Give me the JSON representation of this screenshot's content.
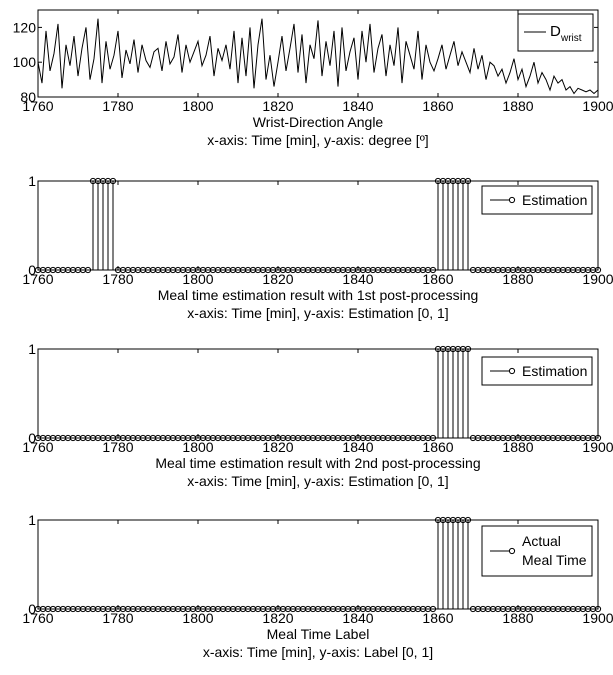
{
  "chart_data": [
    {
      "type": "line",
      "xlabel": "Wrist-Direction Angle",
      "caption": "x-axis: Time [min], y-axis: degree [º]",
      "xlim": [
        1760,
        1900
      ],
      "ylim": [
        80,
        130
      ],
      "xticks": [
        "1760",
        "1780",
        "1800",
        "1820",
        "1840",
        "1860",
        "1880",
        "1900"
      ],
      "yticks": [
        "80",
        "100",
        "120"
      ],
      "legend": {
        "label": "D",
        "subscript": "wrist",
        "placement": "top-right"
      },
      "series": [
        {
          "name": "Dwrist",
          "x": [
            1760,
            1761,
            1762,
            1763,
            1764,
            1765,
            1766,
            1767,
            1768,
            1769,
            1770,
            1771,
            1772,
            1773,
            1774,
            1775,
            1776,
            1777,
            1778,
            1779,
            1780,
            1781,
            1782,
            1783,
            1784,
            1785,
            1786,
            1787,
            1788,
            1789,
            1790,
            1791,
            1792,
            1793,
            1794,
            1795,
            1796,
            1797,
            1798,
            1799,
            1800,
            1801,
            1802,
            1803,
            1804,
            1805,
            1806,
            1807,
            1808,
            1809,
            1810,
            1811,
            1812,
            1813,
            1814,
            1815,
            1816,
            1817,
            1818,
            1819,
            1820,
            1821,
            1822,
            1823,
            1824,
            1825,
            1826,
            1827,
            1828,
            1829,
            1830,
            1831,
            1832,
            1833,
            1834,
            1835,
            1836,
            1837,
            1838,
            1839,
            1840,
            1841,
            1842,
            1843,
            1844,
            1845,
            1846,
            1847,
            1848,
            1849,
            1850,
            1851,
            1852,
            1853,
            1854,
            1855,
            1856,
            1857,
            1858,
            1859,
            1860,
            1861,
            1862,
            1863,
            1864,
            1865,
            1866,
            1867,
            1868,
            1869,
            1870,
            1871,
            1872,
            1873,
            1874,
            1875,
            1876,
            1877,
            1878,
            1879,
            1880,
            1881,
            1882,
            1883,
            1884,
            1885,
            1886,
            1887,
            1888,
            1889,
            1890,
            1891,
            1892,
            1893,
            1894,
            1895,
            1896,
            1897,
            1898,
            1899,
            1900
          ],
          "y": [
            100,
            88,
            118,
            95,
            105,
            122,
            85,
            110,
            98,
            115,
            92,
            108,
            120,
            90,
            102,
            125,
            88,
            112,
            96,
            104,
            118,
            91,
            107,
            99,
            113,
            94,
            110,
            101,
            97,
            106,
            108,
            95,
            112,
            99,
            103,
            116,
            94,
            110,
            100,
            106,
            112,
            98,
            104,
            115,
            92,
            108,
            101,
            110,
            96,
            118,
            88,
            114,
            92,
            120,
            85,
            110,
            125,
            90,
            104,
            86,
            100,
            115,
            95,
            108,
            122,
            94,
            116,
            88,
            110,
            102,
            124,
            92,
            112,
            98,
            118,
            86,
            120,
            95,
            106,
            114,
            90,
            118,
            100,
            122,
            94,
            108,
            116,
            92,
            110,
            98,
            120,
            88,
            112,
            104,
            96,
            118,
            90,
            110,
            100,
            95,
            102,
            110,
            96,
            104,
            112,
            98,
            106,
            100,
            94,
            108,
            96,
            104,
            90,
            100,
            98,
            92,
            96,
            88,
            94,
            102,
            90,
            96,
            86,
            92,
            100,
            88,
            94,
            90,
            84,
            92,
            88,
            90,
            84,
            86,
            82,
            85,
            84,
            83,
            84,
            82,
            84
          ]
        }
      ]
    },
    {
      "type": "scatter",
      "xlabel": "Meal time estimation result with 1st post-processing",
      "caption": "x-axis: Time [min], y-axis: Estimation [0, 1]",
      "xlim": [
        1760,
        1900
      ],
      "ylim": [
        0,
        1
      ],
      "xticks": [
        "1760",
        "1780",
        "1800",
        "1820",
        "1840",
        "1860",
        "1880",
        "1900"
      ],
      "yticks": [
        "0",
        "1"
      ],
      "legend": {
        "label": "Estimation",
        "placement": "top-right"
      },
      "x_start": 1760,
      "x_step": 1.25,
      "ones": [
        [
          1773.75,
          1778.75
        ],
        [
          1860,
          1867.5
        ]
      ],
      "series": [
        {
          "name": "Estimation"
        }
      ]
    },
    {
      "type": "scatter",
      "xlabel": "Meal time estimation result with 2nd post-processing",
      "caption": "x-axis: Time [min], y-axis: Estimation [0, 1]",
      "xlim": [
        1760,
        1900
      ],
      "ylim": [
        0,
        1
      ],
      "xticks": [
        "1760",
        "1780",
        "1800",
        "1820",
        "1840",
        "1860",
        "1880",
        "1900"
      ],
      "yticks": [
        "0",
        "1"
      ],
      "legend": {
        "label": "Estimation",
        "placement": "top-right"
      },
      "x_start": 1760,
      "x_step": 1.25,
      "ones": [
        [
          1860,
          1867.5
        ]
      ],
      "series": [
        {
          "name": "Estimation"
        }
      ]
    },
    {
      "type": "scatter",
      "xlabel": "Meal Time Label",
      "caption": "x-axis: Time [min], y-axis: Label [0, 1]",
      "xlim": [
        1760,
        1900
      ],
      "ylim": [
        0,
        1
      ],
      "xticks": [
        "1760",
        "1780",
        "1800",
        "1820",
        "1840",
        "1860",
        "1880",
        "1900"
      ],
      "yticks": [
        "0",
        "1"
      ],
      "legend": {
        "label": "Actual",
        "label2": "Meal Time",
        "placement": "top-right"
      },
      "x_start": 1760,
      "x_step": 1.25,
      "ones": [
        [
          1860,
          1867.5
        ]
      ],
      "series": [
        {
          "name": "Actual Meal Time"
        }
      ]
    }
  ]
}
